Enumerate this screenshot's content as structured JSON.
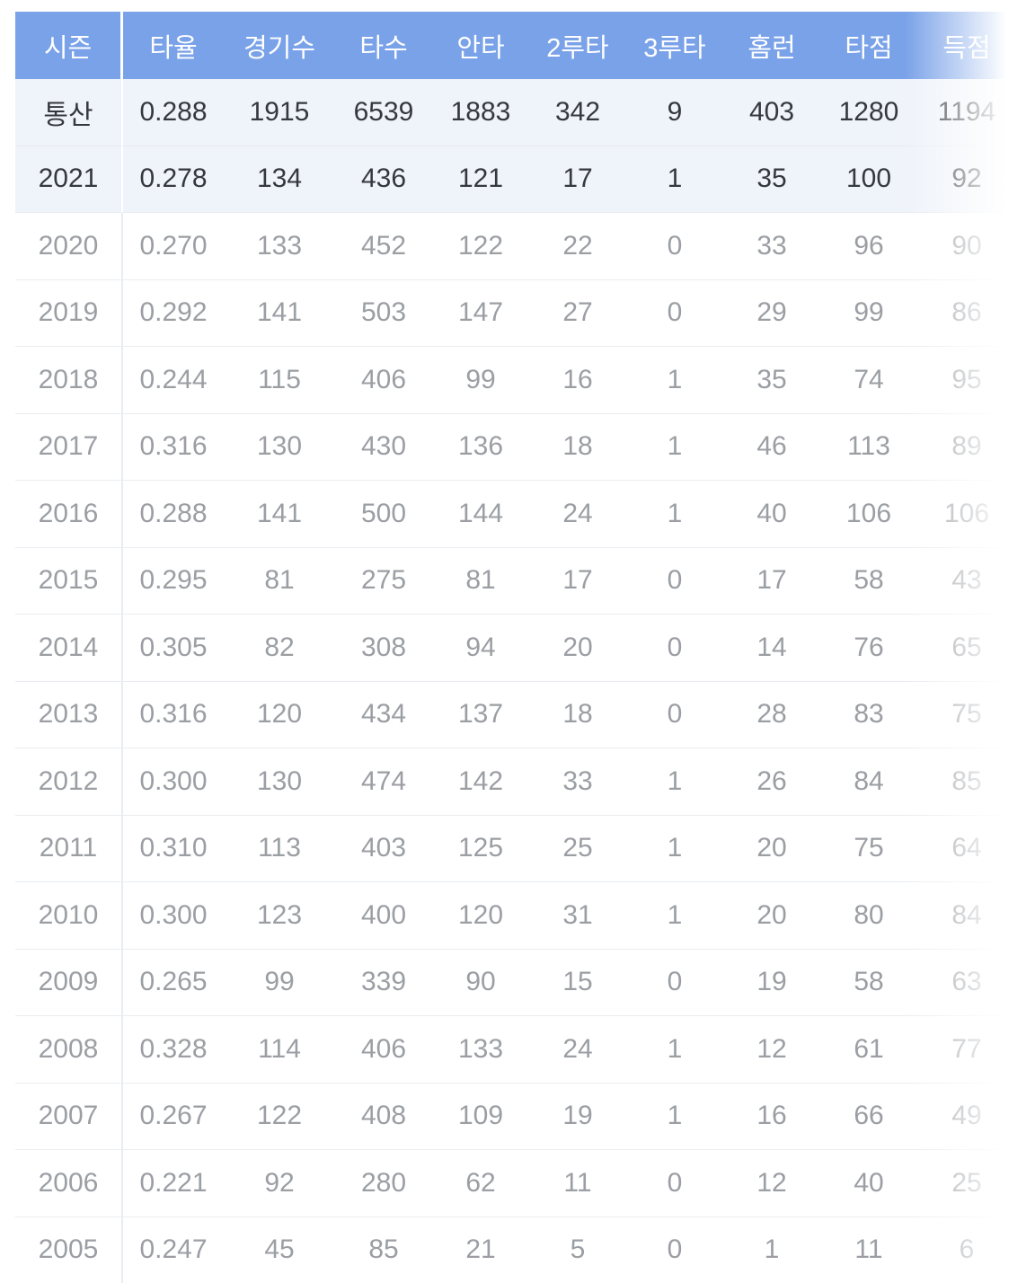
{
  "colors": {
    "header_bg": "#7aa2e8",
    "header_text": "#ffffff",
    "hl_bg": "#eff3fa",
    "hl_text": "#35393f",
    "row_text": "#9b9ea3",
    "border": "#e9edf1",
    "page_bg": "#ffffff"
  },
  "table": {
    "columns": [
      {
        "key": "season",
        "label": "시즌"
      },
      {
        "key": "avg",
        "label": "타율"
      },
      {
        "key": "games",
        "label": "경기수"
      },
      {
        "key": "at-bats",
        "label": "타수"
      },
      {
        "key": "hits",
        "label": "안타"
      },
      {
        "key": "doubles",
        "label": "2루타"
      },
      {
        "key": "triples",
        "label": "3루타"
      },
      {
        "key": "home-runs",
        "label": "홈런"
      },
      {
        "key": "rbi",
        "label": "타점"
      },
      {
        "key": "runs",
        "label": "득점"
      }
    ],
    "rows": [
      {
        "season": "통산",
        "highlight": true,
        "values": [
          "0.288",
          "1915",
          "6539",
          "1883",
          "342",
          "9",
          "403",
          "1280",
          "1194"
        ]
      },
      {
        "season": "2021",
        "highlight": true,
        "values": [
          "0.278",
          "134",
          "436",
          "121",
          "17",
          "1",
          "35",
          "100",
          "92"
        ]
      },
      {
        "season": "2020",
        "highlight": false,
        "values": [
          "0.270",
          "133",
          "452",
          "122",
          "22",
          "0",
          "33",
          "96",
          "90"
        ]
      },
      {
        "season": "2019",
        "highlight": false,
        "values": [
          "0.292",
          "141",
          "503",
          "147",
          "27",
          "0",
          "29",
          "99",
          "86"
        ]
      },
      {
        "season": "2018",
        "highlight": false,
        "values": [
          "0.244",
          "115",
          "406",
          "99",
          "16",
          "1",
          "35",
          "74",
          "95"
        ]
      },
      {
        "season": "2017",
        "highlight": false,
        "values": [
          "0.316",
          "130",
          "430",
          "136",
          "18",
          "1",
          "46",
          "113",
          "89"
        ]
      },
      {
        "season": "2016",
        "highlight": false,
        "values": [
          "0.288",
          "141",
          "500",
          "144",
          "24",
          "1",
          "40",
          "106",
          "106"
        ]
      },
      {
        "season": "2015",
        "highlight": false,
        "values": [
          "0.295",
          "81",
          "275",
          "81",
          "17",
          "0",
          "17",
          "58",
          "43"
        ]
      },
      {
        "season": "2014",
        "highlight": false,
        "values": [
          "0.305",
          "82",
          "308",
          "94",
          "20",
          "0",
          "14",
          "76",
          "65"
        ]
      },
      {
        "season": "2013",
        "highlight": false,
        "values": [
          "0.316",
          "120",
          "434",
          "137",
          "18",
          "0",
          "28",
          "83",
          "75"
        ]
      },
      {
        "season": "2012",
        "highlight": false,
        "values": [
          "0.300",
          "130",
          "474",
          "142",
          "33",
          "1",
          "26",
          "84",
          "85"
        ]
      },
      {
        "season": "2011",
        "highlight": false,
        "values": [
          "0.310",
          "113",
          "403",
          "125",
          "25",
          "1",
          "20",
          "75",
          "64"
        ]
      },
      {
        "season": "2010",
        "highlight": false,
        "values": [
          "0.300",
          "123",
          "400",
          "120",
          "31",
          "1",
          "20",
          "80",
          "84"
        ]
      },
      {
        "season": "2009",
        "highlight": false,
        "values": [
          "0.265",
          "99",
          "339",
          "90",
          "15",
          "0",
          "19",
          "58",
          "63"
        ]
      },
      {
        "season": "2008",
        "highlight": false,
        "values": [
          "0.328",
          "114",
          "406",
          "133",
          "24",
          "1",
          "12",
          "61",
          "77"
        ]
      },
      {
        "season": "2007",
        "highlight": false,
        "values": [
          "0.267",
          "122",
          "408",
          "109",
          "19",
          "1",
          "16",
          "66",
          "49"
        ]
      },
      {
        "season": "2006",
        "highlight": false,
        "values": [
          "0.221",
          "92",
          "280",
          "62",
          "11",
          "0",
          "12",
          "40",
          "25"
        ]
      },
      {
        "season": "2005",
        "highlight": false,
        "values": [
          "0.247",
          "45",
          "85",
          "21",
          "5",
          "0",
          "1",
          "11",
          "6"
        ]
      }
    ]
  }
}
